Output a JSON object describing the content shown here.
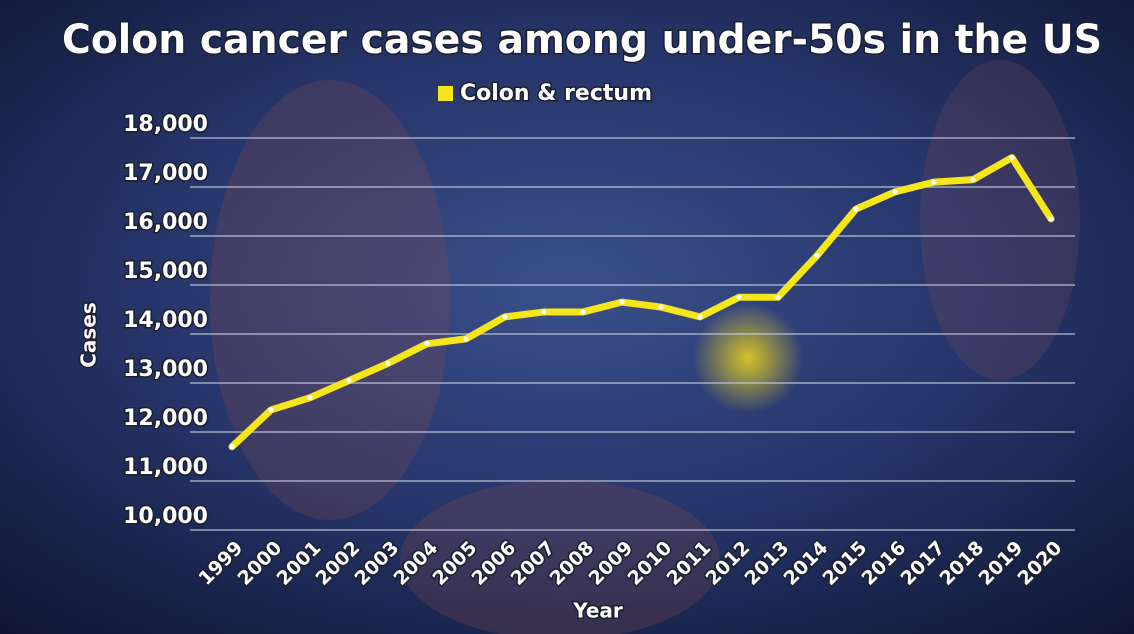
{
  "chart_data": {
    "type": "line",
    "title": "Colon cancer cases among under-50s in the US",
    "x_label": "Year",
    "y_label": "Cases",
    "categories": [
      "1999",
      "2000",
      "2001",
      "2002",
      "2003",
      "2004",
      "2005",
      "2006",
      "2007",
      "2008",
      "2009",
      "2010",
      "2011",
      "2012",
      "2013",
      "2014",
      "2015",
      "2016",
      "2017",
      "2018",
      "2019",
      "2020"
    ],
    "series": [
      {
        "name": "Colon & rectum",
        "color": "#f5e51b",
        "values": [
          11700,
          12450,
          12700,
          13050,
          13400,
          13800,
          13900,
          14350,
          14450,
          14450,
          14650,
          14550,
          14350,
          14750,
          14750,
          15600,
          16550,
          16900,
          17100,
          17150,
          17600,
          16350
        ]
      }
    ],
    "ylim": [
      10000,
      18000
    ],
    "yticks": [
      {
        "value": 10000,
        "label": "10,000"
      },
      {
        "value": 11000,
        "label": "11,000"
      },
      {
        "value": 12000,
        "label": "12,000"
      },
      {
        "value": 13000,
        "label": "13,000"
      },
      {
        "value": 14000,
        "label": "14,000"
      },
      {
        "value": 15000,
        "label": "15,000"
      },
      {
        "value": 16000,
        "label": "16,000"
      },
      {
        "value": 17000,
        "label": "17,000"
      },
      {
        "value": 18000,
        "label": "18,000"
      }
    ],
    "grid": true
  }
}
